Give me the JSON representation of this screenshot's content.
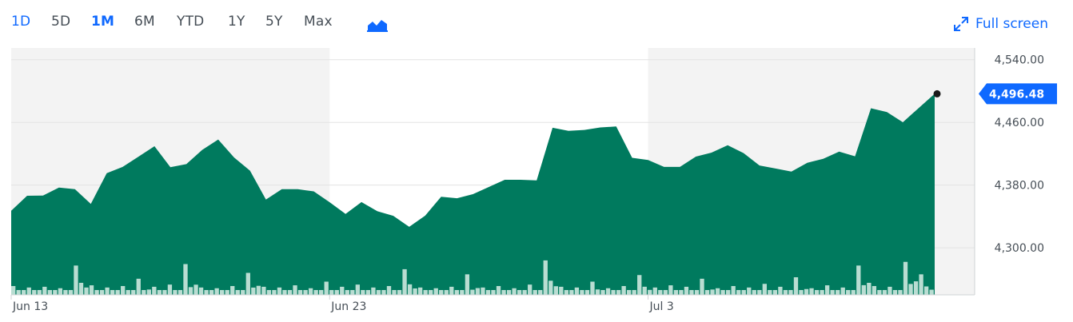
{
  "toolbar": {
    "ranges": [
      "1D",
      "5D",
      "1M",
      "6M",
      "YTD",
      "1Y",
      "5Y",
      "Max"
    ],
    "active_range": "1M",
    "chart_type_icon": "area-chart-icon",
    "fullscreen_label": "Full screen",
    "fullscreen_icon": "expand-arrows-icon"
  },
  "colors": {
    "accent": "#0f69ff",
    "area_fill": "#007a5e",
    "volume_bar": "#b9ddd2",
    "shade": "#f3f3f3",
    "grid": "#e3e3e3",
    "text": "#464e56"
  },
  "chart_data": {
    "type": "area",
    "title": "",
    "xlabel": "",
    "ylabel": "",
    "ylim": [
      4240,
      4555
    ],
    "y_ticks": [
      {
        "value": 4300,
        "label": "4,300.00"
      },
      {
        "value": 4380,
        "label": "4,380.00"
      },
      {
        "value": 4460,
        "label": "4,460.00"
      },
      {
        "value": 4540,
        "label": "4,540.00"
      }
    ],
    "x_ticks": [
      {
        "label": "Jun 13",
        "date": "2023-06-13"
      },
      {
        "label": "Jun 23",
        "date": "2023-06-23"
      },
      {
        "label": "Jul 3",
        "date": "2023-07-03"
      }
    ],
    "x_range": [
      "2023-06-13",
      "2023-07-12"
    ],
    "shaded_bands": [
      {
        "from": "2023-06-13",
        "to": "2023-06-23"
      },
      {
        "from": "2023-07-03",
        "to": "2023-07-12"
      }
    ],
    "last_price": 4496.48,
    "last_price_label": "4,496.48",
    "series": [
      {
        "kind": "price",
        "x": [
          "2023-06-13",
          "2023-06-13",
          "2023-06-14",
          "2023-06-14",
          "2023-06-15",
          "2023-06-15",
          "2023-06-16",
          "2023-06-16",
          "2023-06-17",
          "2023-06-17",
          "2023-06-18",
          "2023-06-18",
          "2023-06-19",
          "2023-06-19",
          "2023-06-20",
          "2023-06-20",
          "2023-06-21",
          "2023-06-21",
          "2023-06-22",
          "2023-06-22",
          "2023-06-23",
          "2023-06-23",
          "2023-06-24",
          "2023-06-24",
          "2023-06-25",
          "2023-06-25",
          "2023-06-26",
          "2023-06-26",
          "2023-06-27",
          "2023-06-27",
          "2023-06-28",
          "2023-06-28",
          "2023-06-29",
          "2023-06-29",
          "2023-06-30",
          "2023-06-30",
          "2023-07-01",
          "2023-07-01",
          "2023-07-02",
          "2023-07-02",
          "2023-07-03",
          "2023-07-03",
          "2023-07-04",
          "2023-07-04",
          "2023-07-05",
          "2023-07-05",
          "2023-07-06",
          "2023-07-06",
          "2023-07-07",
          "2023-07-07",
          "2023-07-08",
          "2023-07-08",
          "2023-07-09",
          "2023-07-09",
          "2023-07-10",
          "2023-07-10",
          "2023-07-11",
          "2023-07-11",
          "2023-07-12"
        ],
        "values": [
          4352,
          4368,
          4365,
          4372,
          4378,
          4356,
          4392,
          4408,
          4418,
          4428,
          4398,
          4410,
          4425,
          4435,
          4420,
          4400,
          4360,
          4370,
          4378,
          4372,
          4355,
          4348,
          4360,
          4345,
          4336,
          4330,
          4341,
          4362,
          4368,
          4370,
          4376,
          4382,
          4390,
          4386,
          4450,
          4454,
          4452,
          4452,
          4450,
          4418,
          4412,
          4400,
          4408,
          4418,
          4420,
          4426,
          4424,
          4405,
          4398,
          4402,
          4410,
          4412,
          4418,
          4420,
          4478,
          4470,
          4465,
          4480,
          4496.48
        ]
      },
      {
        "kind": "volume",
        "values": [
          12,
          10,
          11,
          9,
          40,
          13,
          10,
          12,
          22,
          11,
          14,
          42,
          10,
          9,
          12,
          30,
          11,
          10,
          13,
          9,
          18,
          11,
          14,
          10,
          12,
          35,
          10,
          9,
          11,
          28,
          10,
          12,
          9,
          14,
          47,
          11,
          10,
          18,
          9,
          12,
          27,
          10,
          13,
          11,
          22,
          9,
          12,
          10,
          15,
          11,
          24,
          9,
          13,
          10,
          40,
          12,
          11,
          45,
          28
        ]
      }
    ]
  }
}
